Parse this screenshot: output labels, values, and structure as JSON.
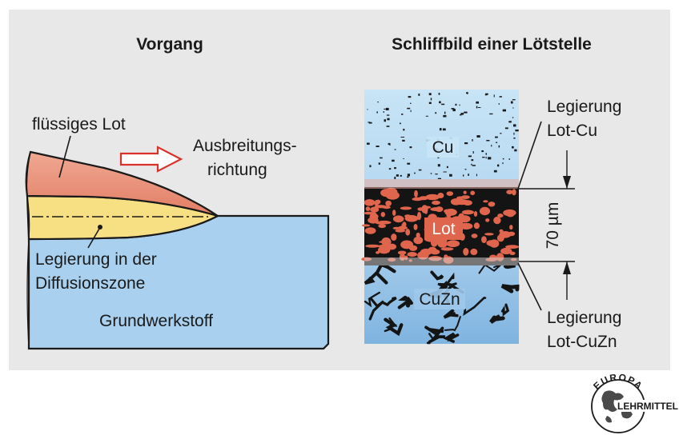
{
  "left_panel": {
    "title": "Vorgang",
    "liquid_solder_label": "flüssiges Lot",
    "direction_label_line1": "Ausbreitungs-",
    "direction_label_line2": "richtung",
    "alloy_label_line1": "Legierung in der",
    "alloy_label_line2": "Diffusionszone",
    "base_material_label": "Grundwerkstoff"
  },
  "right_panel": {
    "title": "Schliffbild einer Lötstelle",
    "cu_label": "Cu",
    "lot_label": "Lot",
    "cuzn_label": "CuZn",
    "top_alloy_line1": "Legierung",
    "top_alloy_line2": "Lot-Cu",
    "bottom_alloy_line1": "Legierung",
    "bottom_alloy_line2": "Lot-CuZn",
    "thickness_label": "70 µm"
  },
  "logo": {
    "top_text": "EUROPA",
    "right_text": "LEHRMITTEL"
  },
  "colors": {
    "panel_background": "#e8e8e8",
    "liquid_solder": "#e8927f",
    "alloy_zone": "#f7df84",
    "base_material": "#a9d0ee",
    "micro_cu": "#bfe0f5",
    "micro_lot": "#e0654d",
    "arrow_red": "#d9322a"
  }
}
